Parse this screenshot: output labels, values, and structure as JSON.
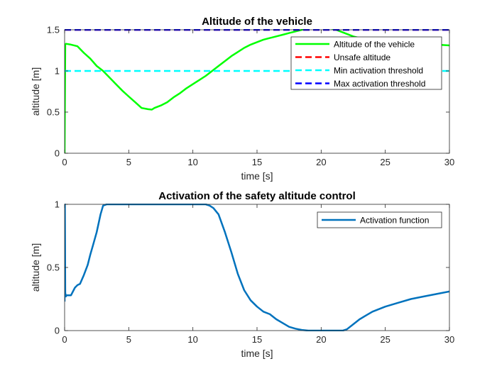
{
  "chart_data": [
    {
      "type": "line",
      "title": "Altitude of the vehicle",
      "xlabel": "time [s]",
      "ylabel": "altitude [m]",
      "xlim": [
        0,
        30
      ],
      "ylim": [
        0,
        1.5
      ],
      "xticks": [
        0,
        5,
        10,
        15,
        20,
        25,
        30
      ],
      "yticks": [
        0,
        0.5,
        1,
        1.5
      ],
      "xtick_labels": [
        "0",
        "5",
        "10",
        "15",
        "20",
        "25",
        "30"
      ],
      "ytick_labels": [
        "0",
        "0.5",
        "1",
        "1.5"
      ],
      "grid": false,
      "legend_position": "top-right",
      "series": [
        {
          "name": "Altitude of the vehicle",
          "color": "#00ff00",
          "style": "solid",
          "x": [
            0,
            0.05,
            0.1,
            0.5,
            1.0,
            1.5,
            2.0,
            2.5,
            3.0,
            3.5,
            4.0,
            4.5,
            5.0,
            5.5,
            6.0,
            6.5,
            6.8,
            7.0,
            7.5,
            8.0,
            8.5,
            9.0,
            9.5,
            10.0,
            10.5,
            11.0,
            11.5,
            12.0,
            12.5,
            13.0,
            13.5,
            14.0,
            14.5,
            15.0,
            15.5,
            16.0,
            16.5,
            17.0,
            17.5,
            18.0,
            18.5,
            19.0,
            19.5,
            20.0,
            20.5,
            21.0,
            21.5,
            22.0,
            22.5,
            23.0,
            24.0,
            25.0,
            26.0,
            27.0,
            28.0,
            29.0,
            30.0
          ],
          "y": [
            0,
            1.32,
            1.33,
            1.32,
            1.3,
            1.22,
            1.15,
            1.06,
            1.0,
            0.92,
            0.84,
            0.76,
            0.69,
            0.62,
            0.55,
            0.535,
            0.53,
            0.55,
            0.58,
            0.62,
            0.68,
            0.73,
            0.79,
            0.84,
            0.89,
            0.94,
            1.0,
            1.06,
            1.12,
            1.18,
            1.23,
            1.28,
            1.32,
            1.35,
            1.38,
            1.4,
            1.42,
            1.44,
            1.46,
            1.48,
            1.5,
            1.52,
            1.53,
            1.535,
            1.53,
            1.51,
            1.48,
            1.45,
            1.42,
            1.4,
            1.37,
            1.35,
            1.34,
            1.335,
            1.33,
            1.32,
            1.31
          ]
        },
        {
          "name": "Unsafe altitude",
          "color": "#ff0000",
          "style": "dashed",
          "x": [
            0,
            30
          ],
          "y": [
            1.5,
            1.5
          ]
        },
        {
          "name": "Min activation threshold",
          "color": "#00ffff",
          "style": "dashed",
          "x": [
            0,
            30
          ],
          "y": [
            1.0,
            1.0
          ]
        },
        {
          "name": "Max activation threshold",
          "color": "#0000ff",
          "style": "dashed",
          "x": [
            0,
            30
          ],
          "y": [
            1.5,
            1.5
          ]
        }
      ]
    },
    {
      "type": "line",
      "title": "Activation of the safety altitude control",
      "xlabel": "time [s]",
      "ylabel": "altitude [m]",
      "xlim": [
        0,
        30
      ],
      "ylim": [
        0,
        1
      ],
      "xticks": [
        0,
        5,
        10,
        15,
        20,
        25,
        30
      ],
      "yticks": [
        0,
        0.5,
        1
      ],
      "xtick_labels": [
        "0",
        "5",
        "10",
        "15",
        "20",
        "25",
        "30"
      ],
      "ytick_labels": [
        "0",
        "0.5",
        "1"
      ],
      "grid": false,
      "legend_position": "top-right",
      "series": [
        {
          "name": "Activation function",
          "color": "#0072bd",
          "style": "solid",
          "x": [
            0,
            0.02,
            0.05,
            0.1,
            0.15,
            0.5,
            0.8,
            1.0,
            1.2,
            1.5,
            1.8,
            2.0,
            2.2,
            2.5,
            2.8,
            3.0,
            3.3,
            4.0,
            6.0,
            8.0,
            10.0,
            11.0,
            11.3,
            11.6,
            12.0,
            12.5,
            13.0,
            13.5,
            14.0,
            14.5,
            15.0,
            15.5,
            16.0,
            16.5,
            17.0,
            17.5,
            18.0,
            18.5,
            19.0,
            20.0,
            21.0,
            21.7,
            22.0,
            22.5,
            23.0,
            23.5,
            24.0,
            25.0,
            26.0,
            27.0,
            28.0,
            29.0,
            30.0
          ],
          "y": [
            0.23,
            1.0,
            0.3,
            0.27,
            0.28,
            0.28,
            0.34,
            0.36,
            0.37,
            0.44,
            0.52,
            0.6,
            0.67,
            0.78,
            0.92,
            0.99,
            1.0,
            1.0,
            1.0,
            1.0,
            1.0,
            1.0,
            0.99,
            0.97,
            0.92,
            0.78,
            0.62,
            0.45,
            0.32,
            0.24,
            0.19,
            0.15,
            0.13,
            0.09,
            0.06,
            0.03,
            0.015,
            0.005,
            0.0,
            0.0,
            0.0,
            0.0,
            0.01,
            0.05,
            0.09,
            0.12,
            0.15,
            0.19,
            0.22,
            0.25,
            0.27,
            0.29,
            0.31
          ]
        }
      ]
    }
  ]
}
